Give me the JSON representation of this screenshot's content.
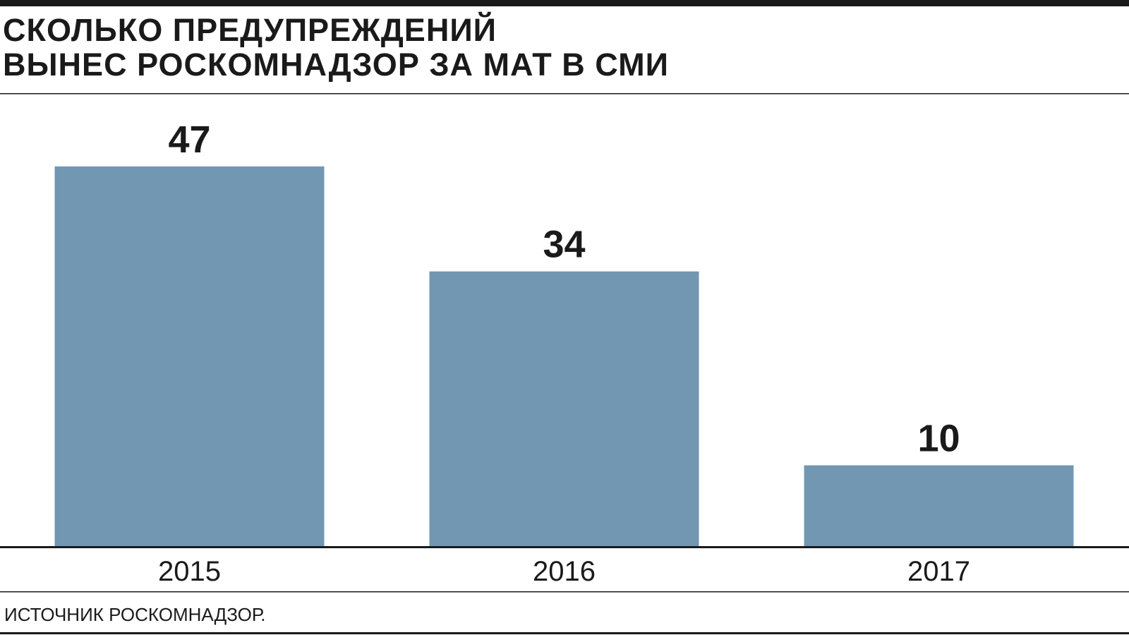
{
  "chart_data": {
    "type": "bar",
    "title": [
      "СКОЛЬКО ПРЕДУПРЕЖДЕНИЙ",
      "ВЫНЕС РОСКОМНАДЗОР ЗА МАТ В СМИ"
    ],
    "categories": [
      "2015",
      "2016",
      "2017"
    ],
    "values": [
      47,
      34,
      10
    ],
    "color": "#7297b3",
    "source": "ИСТОЧНИК РОСКОМНАДЗОР."
  }
}
